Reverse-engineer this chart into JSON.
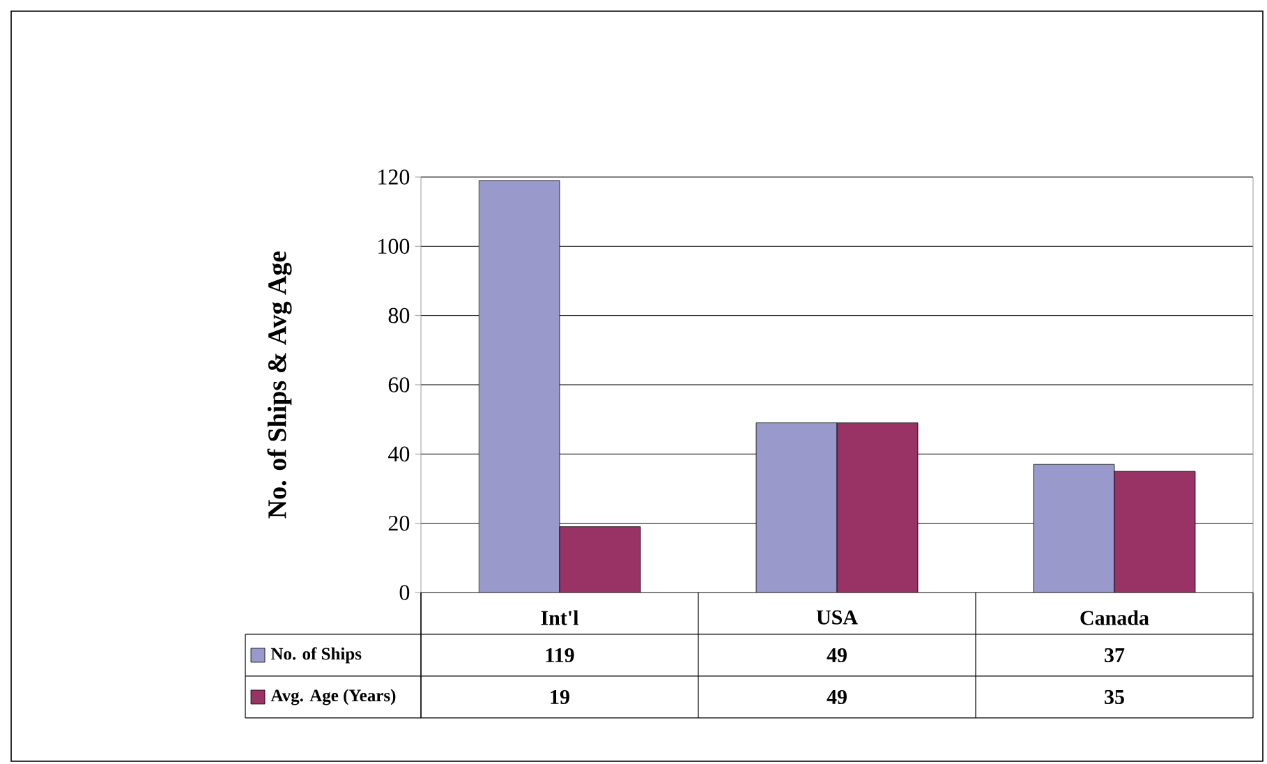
{
  "chart_data": {
    "type": "bar",
    "ylabel": "No. of Ships & Avg Age",
    "categories": [
      "Int'l",
      "USA",
      "Canada"
    ],
    "series": [
      {
        "name": "No. of Ships",
        "color": "#9999cc",
        "values": [
          119,
          49,
          37
        ]
      },
      {
        "name": "Avg. Age (Years)",
        "color": "#993366",
        "values": [
          19,
          49,
          35
        ]
      }
    ],
    "ylim": [
      0,
      120
    ],
    "yticks": [
      0,
      20,
      40,
      60,
      80,
      100,
      120
    ],
    "grid": "y",
    "legend": "bottom",
    "data_labels": true
  }
}
